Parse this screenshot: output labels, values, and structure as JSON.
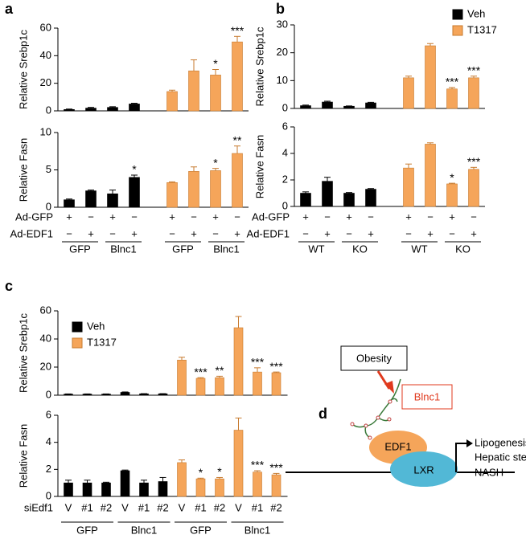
{
  "panels": [
    {
      "label": "a",
      "rows": [
        {
          "name": "Ad-GFP",
          "marks": [
            "+",
            "−",
            "+",
            "−",
            "+",
            "−",
            "+",
            "−"
          ]
        },
        {
          "name": "Ad-EDF1",
          "marks": [
            "−",
            "+",
            "−",
            "+",
            "−",
            "+",
            "−",
            "+"
          ]
        }
      ],
      "groups": [
        "GFP",
        "Blnc1",
        "GFP",
        "Blnc1"
      ]
    },
    {
      "label": "b",
      "rows": [
        {
          "name": "Ad-GFP",
          "marks": [
            "+",
            "−",
            "+",
            "−",
            "+",
            "−",
            "+",
            "−"
          ]
        },
        {
          "name": "Ad-EDF1",
          "marks": [
            "−",
            "+",
            "−",
            "+",
            "−",
            "+",
            "−",
            "+"
          ]
        }
      ],
      "groups": [
        "WT",
        "KO",
        "WT",
        "KO"
      ],
      "legend": [
        {
          "name": "Veh",
          "color": "#000000"
        },
        {
          "name": "T1317",
          "color": "#f5a55a"
        }
      ]
    },
    {
      "label": "c",
      "rows": [
        {
          "name": "siEdf1",
          "marks": [
            "V",
            "#1",
            "#2",
            "V",
            "#1",
            "#2",
            "V",
            "#1",
            "#2",
            "V",
            "#1",
            "#2"
          ]
        }
      ],
      "groups": [
        "GFP",
        "Blnc1",
        "GFP",
        "Blnc1"
      ],
      "legend": [
        {
          "name": "Veh",
          "color": "#000000"
        },
        {
          "name": "T1317",
          "color": "#f5a55a"
        }
      ]
    },
    {
      "label": "d",
      "diagram": {
        "trigger": "Obesity",
        "rna": "Blnc1",
        "cofactor": "EDF1",
        "receptor": "LXR",
        "outcomes": [
          "Lipogenesis",
          "Hepatic steatosis",
          "NASH"
        ]
      }
    }
  ],
  "chart_data": [
    {
      "type": "bar",
      "ylabel": "Relative Srebp1c",
      "ylim": [
        0,
        60
      ],
      "yticks": [
        0,
        20,
        40,
        60
      ],
      "values": [
        1,
        2,
        2.5,
        5,
        14,
        29,
        26,
        50
      ],
      "errors": [
        0.3,
        0.5,
        0.5,
        0.5,
        1,
        8,
        4,
        4
      ],
      "colors": [
        "#000000",
        "#000000",
        "#000000",
        "#000000",
        "#f5a55a",
        "#f5a55a",
        "#f5a55a",
        "#f5a55a"
      ],
      "significance": [
        null,
        null,
        null,
        null,
        null,
        null,
        "*",
        "***"
      ]
    },
    {
      "type": "bar",
      "ylabel": "Relative Fasn",
      "ylim": [
        0,
        10
      ],
      "yticks": [
        0,
        5,
        10
      ],
      "values": [
        1,
        2.2,
        1.8,
        4,
        3.3,
        4.8,
        4.9,
        7.2
      ],
      "errors": [
        0.1,
        0.1,
        0.5,
        0.3,
        0.1,
        0.6,
        0.3,
        1
      ],
      "colors": [
        "#000000",
        "#000000",
        "#000000",
        "#000000",
        "#f5a55a",
        "#f5a55a",
        "#f5a55a",
        "#f5a55a"
      ],
      "significance": [
        null,
        null,
        null,
        "*",
        null,
        null,
        "*",
        "**"
      ]
    },
    {
      "type": "bar",
      "ylabel": "Relative Srebp1c",
      "ylim": [
        0,
        30
      ],
      "yticks": [
        0,
        10,
        20,
        30
      ],
      "values": [
        1,
        2.3,
        0.8,
        2,
        11,
        22.5,
        7,
        11
      ],
      "errors": [
        0.2,
        0.3,
        0.1,
        0.2,
        0.6,
        0.8,
        0.5,
        0.6
      ],
      "colors": [
        "#000000",
        "#000000",
        "#000000",
        "#000000",
        "#f5a55a",
        "#f5a55a",
        "#f5a55a",
        "#f5a55a"
      ],
      "significance": [
        null,
        null,
        null,
        null,
        null,
        null,
        "***",
        "***"
      ]
    },
    {
      "type": "bar",
      "ylabel": "Relative Fasn",
      "ylim": [
        0,
        6
      ],
      "yticks": [
        0,
        2,
        4,
        6
      ],
      "values": [
        1,
        1.9,
        1,
        1.3,
        2.9,
        4.7,
        1.7,
        2.8
      ],
      "errors": [
        0.1,
        0.3,
        0.05,
        0.05,
        0.3,
        0.1,
        0.05,
        0.15
      ],
      "colors": [
        "#000000",
        "#000000",
        "#000000",
        "#000000",
        "#f5a55a",
        "#f5a55a",
        "#f5a55a",
        "#f5a55a"
      ],
      "significance": [
        null,
        null,
        null,
        null,
        null,
        null,
        "*",
        "***"
      ]
    },
    {
      "type": "bar",
      "ylabel": "Relative Srebp1c",
      "ylim": [
        0,
        60
      ],
      "yticks": [
        0,
        20,
        40,
        60
      ],
      "values": [
        0.8,
        0.8,
        0.8,
        2,
        1,
        1,
        25,
        12,
        12.5,
        48,
        16.5,
        16
      ],
      "errors": [
        0.1,
        0.1,
        0.1,
        0.3,
        0.1,
        0.1,
        2,
        0.5,
        1,
        8,
        3,
        0.5
      ],
      "colors": [
        "#000000",
        "#000000",
        "#000000",
        "#000000",
        "#000000",
        "#000000",
        "#f5a55a",
        "#f5a55a",
        "#f5a55a",
        "#f5a55a",
        "#f5a55a",
        "#f5a55a"
      ],
      "significance": [
        null,
        null,
        null,
        null,
        null,
        null,
        null,
        "***",
        "**",
        null,
        "***",
        "***"
      ]
    },
    {
      "type": "bar",
      "ylabel": "Relative Fasn",
      "ylim": [
        0,
        6
      ],
      "yticks": [
        0,
        2,
        4,
        6
      ],
      "values": [
        1,
        1,
        1,
        1.9,
        1,
        1.1,
        2.5,
        1.3,
        1.3,
        4.9,
        1.8,
        1.6
      ],
      "errors": [
        0.2,
        0.2,
        0.05,
        0.05,
        0.2,
        0.3,
        0.2,
        0.05,
        0.1,
        0.9,
        0.1,
        0.1
      ],
      "colors": [
        "#000000",
        "#000000",
        "#000000",
        "#000000",
        "#000000",
        "#000000",
        "#f5a55a",
        "#f5a55a",
        "#f5a55a",
        "#f5a55a",
        "#f5a55a",
        "#f5a55a"
      ],
      "significance": [
        null,
        null,
        null,
        null,
        null,
        null,
        null,
        "*",
        "*",
        null,
        "***",
        "***"
      ]
    }
  ]
}
